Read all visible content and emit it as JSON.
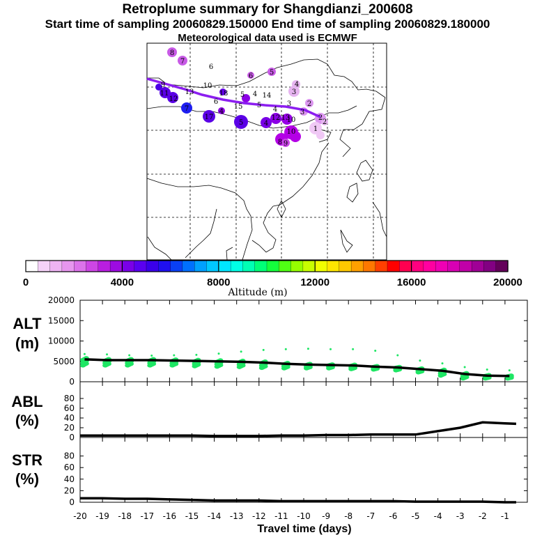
{
  "header": {
    "title": "Retroplume summary for Shangdianzi_200608",
    "times": "Start time of sampling 20060829.150000     End time of sampling 20060829.180000",
    "met": "Meteorological data used is ECMWF"
  },
  "colorbar": {
    "label": "Altitude (m)",
    "ticks": [
      "0",
      "4000",
      "8000",
      "12000",
      "16000",
      "20000"
    ],
    "colors": [
      "#ffffff",
      "#f5d2f8",
      "#eeb4f3",
      "#e796ee",
      "#dc73ea",
      "#cd46e5",
      "#b91ee0",
      "#9d0be2",
      "#7a00e8",
      "#5a00f0",
      "#3a00ea",
      "#1f10f0",
      "#0a40f5",
      "#0070ff",
      "#00a0ff",
      "#00c8ff",
      "#00e6ff",
      "#00ffe6",
      "#00ffb4",
      "#00ff78",
      "#14ff3c",
      "#50ff14",
      "#96ff00",
      "#c8ff00",
      "#f0ff00",
      "#ffe600",
      "#ffc800",
      "#ffa000",
      "#ff7800",
      "#ff4000",
      "#ff0000",
      "#ff0050",
      "#ff0080",
      "#ff00a0",
      "#f000b4",
      "#d800b4",
      "#c000a8",
      "#a00096",
      "#820082",
      "#64005a"
    ]
  },
  "map_labels": [
    {
      "t": "8",
      "c": "#c85ae6"
    },
    {
      "t": "7",
      "c": "#c85ae6"
    },
    {
      "t": "6",
      "c": "#4b00e6"
    },
    {
      "t": "6",
      "c": "#c85ae6"
    },
    {
      "t": "5",
      "c": "#c85ae6"
    },
    {
      "t": "4",
      "c": "#e6b4f0"
    },
    {
      "t": "3",
      "c": "#e6b4f0"
    },
    {
      "t": "9",
      "c": "#4b00e6"
    },
    {
      "t": "10",
      "c": "#4b00e6"
    },
    {
      "t": "11",
      "c": "#5a00e6"
    },
    {
      "t": "12",
      "c": "#5a00e6"
    },
    {
      "t": "13",
      "c": "#9600e6"
    },
    {
      "t": "18",
      "c": "#a000e6"
    },
    {
      "t": "5",
      "c": "#a000e6"
    },
    {
      "t": "4",
      "c": "#dc96f0"
    },
    {
      "t": "14",
      "c": "#5a00e6"
    },
    {
      "t": "7",
      "c": "#1e1ef0"
    },
    {
      "t": "6",
      "c": "#6400e6"
    },
    {
      "t": "15",
      "c": "#8c00e6"
    },
    {
      "t": "5",
      "c": "#7800e6"
    },
    {
      "t": "4",
      "c": "#b400e6"
    },
    {
      "t": "3",
      "c": "#c85ae6"
    },
    {
      "t": "2",
      "c": "#dc96f0"
    },
    {
      "t": "17",
      "c": "#5a00e6"
    },
    {
      "t": "4",
      "c": "#8c00e6"
    },
    {
      "t": "5",
      "c": "#5a00e6"
    },
    {
      "t": "4",
      "c": "#7800e6"
    },
    {
      "t": "12",
      "c": "#8c00e6"
    },
    {
      "t": "13",
      "c": "#8c00e6"
    },
    {
      "t": "10",
      "c": "#9600e6"
    },
    {
      "t": "2",
      "c": "#dc96f0"
    },
    {
      "t": "1",
      "c": "#f0c8f5"
    },
    {
      "t": "10",
      "c": "#b400e6"
    },
    {
      "t": "8",
      "c": "#b400e6"
    },
    {
      "t": "9",
      "c": "#b400e6"
    },
    {
      "t": "3",
      "c": "#dc96f0"
    },
    {
      "t": "2",
      "c": "#dc96f0"
    }
  ],
  "chart_data": [
    {
      "type": "scatter+line",
      "name": "ALT",
      "ylabel": "ALT\n(m)",
      "ylim": [
        0,
        20000
      ],
      "yticks": [
        "0",
        "5000",
        "10000",
        "15000",
        "20000"
      ],
      "x": [
        -19.8,
        -18.8,
        -17.8,
        -16.8,
        -15.8,
        -14.8,
        -13.8,
        -12.8,
        -11.8,
        -10.8,
        -9.8,
        -8.8,
        -7.8,
        -6.8,
        -5.8,
        -4.8,
        -3.8,
        -2.8,
        -1.8,
        -0.8
      ],
      "median": [
        5500,
        5300,
        5300,
        5300,
        5200,
        5100,
        5000,
        4900,
        4700,
        4400,
        4200,
        4100,
        4000,
        3700,
        3500,
        3100,
        2700,
        1900,
        1500,
        1400
      ],
      "spread_low": [
        4000,
        4000,
        4000,
        4000,
        4000,
        3800,
        3700,
        3600,
        3400,
        3300,
        3300,
        3300,
        3100,
        3000,
        2800,
        2300,
        1500,
        800,
        800,
        800
      ],
      "spread_high": [
        6800,
        6700,
        6500,
        6400,
        6500,
        6600,
        6900,
        7400,
        7800,
        8000,
        8100,
        8000,
        8000,
        7600,
        6500,
        5200,
        4500,
        3600,
        3000,
        2800
      ]
    },
    {
      "type": "line",
      "name": "ABL",
      "ylabel": "ABL\n(%)",
      "ylim": [
        0,
        100
      ],
      "yticks": [
        "0",
        "20",
        "40",
        "60",
        "80"
      ],
      "x": [
        -20,
        -19,
        -18,
        -17,
        -16,
        -15,
        -14,
        -13,
        -12,
        -11,
        -10,
        -9,
        -8,
        -7,
        -6,
        -5,
        -4,
        -3,
        -2,
        -1,
        -0.5
      ],
      "values": [
        4,
        4,
        4,
        4,
        4,
        4,
        3,
        3,
        3,
        4,
        4,
        5,
        5,
        6,
        6,
        6,
        13,
        20,
        31,
        29,
        28
      ]
    },
    {
      "type": "line",
      "name": "STR",
      "ylabel": "STR\n(%)",
      "ylim": [
        0,
        100
      ],
      "yticks": [
        "0",
        "20",
        "40",
        "60",
        "80"
      ],
      "x": [
        -20,
        -19,
        -18,
        -17,
        -16,
        -15,
        -14,
        -13,
        -12,
        -11,
        -10,
        -9,
        -8,
        -7,
        -6,
        -5,
        -4,
        -3,
        -2,
        -1,
        -0.5
      ],
      "values": [
        7,
        7,
        6,
        6,
        5,
        4,
        3,
        3,
        3,
        2,
        2,
        2,
        2,
        2,
        2,
        1,
        1,
        1,
        1,
        0,
        0
      ]
    }
  ],
  "xaxis": {
    "xlim": [
      -20,
      0
    ],
    "ticks": [
      "-20",
      "-19",
      "-18",
      "-17",
      "-16",
      "-15",
      "-14",
      "-13",
      "-12",
      "-11",
      "-10",
      "-9",
      "-8",
      "-7",
      "-6",
      "-5",
      "-4",
      "-3",
      "-2",
      "-1"
    ],
    "xlabel": "Travel time (days)"
  }
}
